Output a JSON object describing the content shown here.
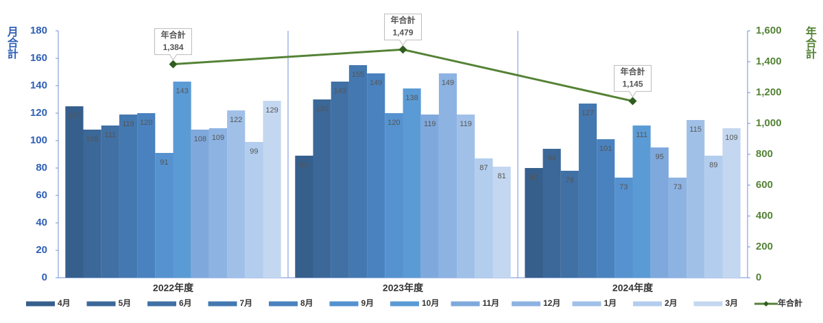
{
  "chart_data": {
    "type": "bar",
    "y_label": "月合計",
    "y2_label": "年合計",
    "categories": [
      "2022年度",
      "2023年度",
      "2024年度"
    ],
    "ylim": [
      0,
      180
    ],
    "yticks": [
      0,
      20,
      40,
      60,
      80,
      100,
      120,
      140,
      160,
      180
    ],
    "y2lim": [
      0,
      1600
    ],
    "y2ticks": [
      0,
      200,
      400,
      600,
      800,
      {
        "value": 1000,
        "label": "1,000"
      },
      {
        "value": 1200,
        "label": "1,200"
      },
      {
        "value": 1400,
        "label": "1,400"
      },
      {
        "value": 1600,
        "label": "1,600"
      }
    ],
    "series": [
      {
        "name": "4月",
        "color": "#365f8c",
        "values": [
          125,
          89,
          80
        ]
      },
      {
        "name": "5月",
        "color": "#3b6898",
        "values": [
          108,
          130,
          94
        ]
      },
      {
        "name": "6月",
        "color": "#4070a4",
        "values": [
          111,
          143,
          78
        ]
      },
      {
        "name": "7月",
        "color": "#4478b0",
        "values": [
          119,
          155,
          127
        ]
      },
      {
        "name": "8月",
        "color": "#4a82bf",
        "values": [
          120,
          149,
          101
        ]
      },
      {
        "name": "9月",
        "color": "#5592cf",
        "values": [
          91,
          120,
          73
        ]
      },
      {
        "name": "10月",
        "color": "#5b9bd5",
        "values": [
          143,
          138,
          111
        ]
      },
      {
        "name": "11月",
        "color": "#7fa9dc",
        "values": [
          108,
          119,
          95
        ]
      },
      {
        "name": "12月",
        "color": "#8db3e2",
        "values": [
          109,
          149,
          73
        ]
      },
      {
        "name": "1月",
        "color": "#a0c0e8",
        "values": [
          122,
          119,
          115
        ]
      },
      {
        "name": "2月",
        "color": "#b3cdee",
        "values": [
          99,
          87,
          89
        ]
      },
      {
        "name": "3月",
        "color": "#c4d7f0",
        "values": [
          129,
          81,
          109
        ]
      },
      {
        "name": "年合計",
        "type": "line",
        "axis": "y2",
        "color": "#548235",
        "values": [
          1384,
          1479,
          1145
        ],
        "value_labels": [
          "1,384",
          "1,479",
          "1,145"
        ]
      }
    ]
  }
}
